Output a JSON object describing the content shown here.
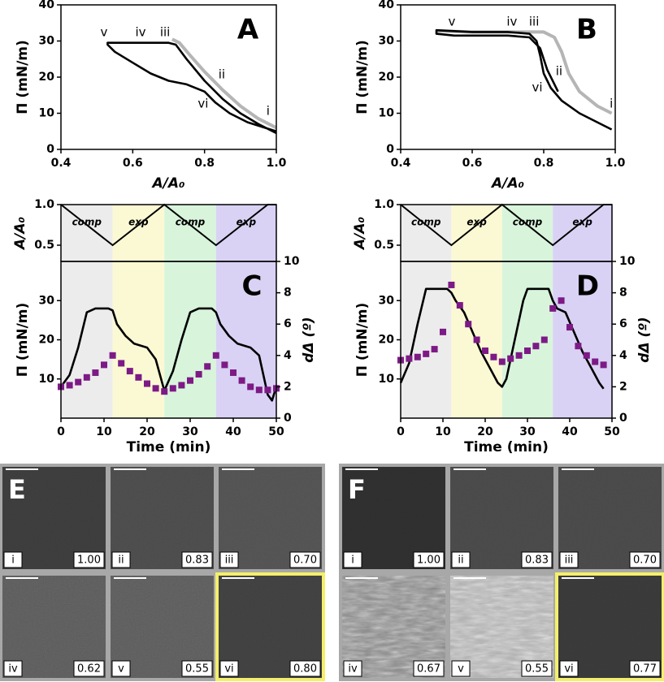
{
  "chart_data": [
    {
      "type": "isotherm",
      "panel_label": "A",
      "xlabel": "A/A₀",
      "ylabel": "Π  (mN/m)",
      "xlim": [
        0.4,
        1.0
      ],
      "xticks": [
        0.4,
        0.6,
        0.8,
        {
          "value": 1,
          "label": "1.0"
        }
      ],
      "ylim": [
        0,
        40
      ],
      "yticks": [
        0,
        10,
        20,
        30,
        40
      ],
      "annotations": [
        "i",
        "ii",
        "iii",
        "iv",
        "v",
        "vi"
      ],
      "series": [
        {
          "color": "#b5b5b5",
          "x": [
            1.0,
            0.95,
            0.9,
            0.85,
            0.8,
            0.76,
            0.73,
            0.71
          ],
          "values": [
            6,
            8.5,
            12,
            16.5,
            21.5,
            26,
            29.5,
            30.5
          ]
        },
        {
          "color": "#000000",
          "x": [
            1.0,
            0.95,
            0.9,
            0.85,
            0.8,
            0.75,
            0.72,
            0.7,
            0.53,
            0.53,
            0.55,
            0.6,
            0.65,
            0.7,
            0.75,
            0.8,
            0.83,
            0.87,
            0.92,
            1.0
          ],
          "values": [
            4.5,
            7,
            10,
            14,
            19,
            25,
            29,
            29.5,
            29.5,
            29,
            27,
            24,
            21,
            19,
            18,
            16,
            13,
            10,
            7.5,
            5
          ]
        }
      ]
    },
    {
      "type": "isotherm",
      "panel_label": "B",
      "xlabel": "A/A₀",
      "ylabel": "Π  (mN/m)",
      "xlim": [
        0.4,
        1.0
      ],
      "xticks": [
        0.4,
        0.6,
        0.8,
        {
          "value": 1,
          "label": "1.0"
        }
      ],
      "ylim": [
        0,
        40
      ],
      "yticks": [
        0,
        10,
        20,
        30,
        40
      ],
      "annotations": [
        "i",
        "ii",
        "iii",
        "iv",
        "v",
        "vi"
      ],
      "series": [
        {
          "color": "#b5b5b5",
          "x": [
            0.99,
            0.95,
            0.9,
            0.87,
            0.85,
            0.83,
            0.8,
            0.7,
            0.6,
            0.5
          ],
          "values": [
            10,
            12,
            16,
            21,
            27,
            31,
            32.5,
            32.5,
            32.5,
            32.8
          ]
        },
        {
          "color": "#000000",
          "x": [
            0.99,
            0.95,
            0.9,
            0.85,
            0.82,
            0.8,
            0.79,
            0.78,
            0.76,
            0.7,
            0.6,
            0.5,
            0.5,
            0.55,
            0.6,
            0.7,
            0.76,
            0.79,
            0.81,
            0.84
          ],
          "values": [
            5.5,
            7.5,
            10,
            13.5,
            17,
            21,
            26,
            30,
            32,
            32.5,
            32.5,
            33,
            32,
            31.5,
            31.5,
            31.5,
            31,
            28,
            22,
            16
          ]
        }
      ]
    },
    {
      "type": "time-series",
      "panel_label": "C",
      "top": {
        "ylabel": "A/A₀",
        "ylim": [
          0.3,
          1.0
        ],
        "yticks": [
          0.5,
          {
            "value": 1,
            "label": "1.0"
          }
        ],
        "color": "#000000",
        "x": [
          0,
          12,
          24,
          36,
          48,
          50
        ],
        "values": [
          1,
          0.5,
          1,
          0.5,
          1,
          1
        ]
      },
      "phases": [
        {
          "label": "comp",
          "start": 0,
          "end": 12,
          "color": "#ececec"
        },
        {
          "label": "exp",
          "start": 12,
          "end": 24,
          "color": "#fbf9d4"
        },
        {
          "label": "comp",
          "start": 24,
          "end": 36,
          "color": "#d8f5dc"
        },
        {
          "label": "exp",
          "start": 36,
          "end": 50,
          "color": "#d9d2f4"
        }
      ],
      "xlabel": "Time (min)",
      "xlim": [
        0,
        50
      ],
      "xticks": [
        0,
        10,
        20,
        30,
        40,
        50
      ],
      "ylabel": "Π  (mN/m)",
      "ylim": [
        0,
        40
      ],
      "yticks": [
        10,
        20,
        30
      ],
      "y2label": "dΔ (º)",
      "y2lim": [
        0,
        10
      ],
      "y2ticks": [
        0,
        2,
        4,
        6,
        8,
        10
      ],
      "series": [
        {
          "type": "line",
          "color": "#000000",
          "x": [
            0,
            2,
            4,
            6,
            8,
            11,
            12,
            13,
            15,
            17,
            20,
            22,
            24,
            26,
            28,
            30,
            32,
            35,
            36,
            37,
            39,
            41,
            44,
            46,
            48,
            49,
            50
          ],
          "values": [
            8,
            11,
            18,
            27,
            28,
            28,
            27.5,
            24,
            21,
            19,
            18,
            15,
            7,
            12,
            20,
            27,
            28,
            28,
            27,
            24,
            21,
            19,
            18,
            16,
            6,
            4.5,
            8
          ]
        },
        {
          "type": "scatter",
          "axis": "y2",
          "color": "#7d1a86",
          "x": [
            0,
            2,
            4,
            6,
            8,
            10,
            12,
            14,
            16,
            18,
            20,
            22,
            24,
            26,
            28,
            30,
            32,
            34,
            36,
            38,
            40,
            42,
            44,
            46,
            48,
            50
          ],
          "values": [
            2.0,
            2.1,
            2.3,
            2.6,
            2.9,
            3.4,
            4.0,
            3.5,
            3.0,
            2.6,
            2.2,
            1.9,
            1.7,
            1.9,
            2.1,
            2.4,
            2.8,
            3.3,
            4.0,
            3.4,
            2.9,
            2.4,
            2.0,
            1.8,
            1.8,
            1.9
          ]
        }
      ]
    },
    {
      "type": "time-series",
      "panel_label": "D",
      "top": {
        "ylabel": "A/A₀",
        "ylim": [
          0.3,
          1.0
        ],
        "yticks": [
          0.5,
          {
            "value": 1,
            "label": "1.0"
          }
        ],
        "color": "#000000",
        "x": [
          0,
          12,
          24,
          36,
          48,
          50
        ],
        "values": [
          1,
          0.5,
          1,
          0.5,
          1,
          1
        ]
      },
      "phases": [
        {
          "label": "comp",
          "start": 0,
          "end": 12,
          "color": "#ececec"
        },
        {
          "label": "exp",
          "start": 12,
          "end": 24,
          "color": "#fbf9d4"
        },
        {
          "label": "comp",
          "start": 24,
          "end": 36,
          "color": "#d8f5dc"
        },
        {
          "label": "exp",
          "start": 36,
          "end": 50,
          "color": "#d9d2f4"
        }
      ],
      "xlabel": "Time (min)",
      "xlim": [
        0,
        50
      ],
      "xticks": [
        0,
        10,
        20,
        30,
        40,
        50
      ],
      "ylabel": "Π  (mN/m)",
      "ylim": [
        0,
        40
      ],
      "yticks": [
        10,
        20,
        30
      ],
      "y2label": "dΔ (º)",
      "y2lim": [
        0,
        10
      ],
      "y2ticks": [
        0,
        2,
        4,
        6,
        8,
        10
      ],
      "series": [
        {
          "type": "line",
          "color": "#000000",
          "x": [
            0,
            2,
            4,
            6,
            8,
            11,
            12,
            13,
            15,
            17,
            19,
            21,
            23,
            24,
            25,
            27,
            29,
            30,
            33,
            35,
            36,
            37,
            39,
            41,
            43,
            45,
            47,
            48
          ],
          "values": [
            9,
            14,
            24,
            33,
            33,
            33,
            32,
            30,
            27,
            22,
            17,
            13,
            9,
            8,
            10,
            20,
            30,
            33,
            33,
            33,
            30,
            28,
            27,
            22,
            17,
            13,
            9,
            7.5
          ]
        },
        {
          "type": "scatter",
          "axis": "y2",
          "color": "#7d1a86",
          "x": [
            0,
            2,
            4,
            6,
            8,
            10,
            12,
            14,
            16,
            18,
            20,
            22,
            24,
            26,
            28,
            30,
            32,
            34,
            36,
            38,
            40,
            42,
            44,
            46,
            48
          ],
          "values": [
            3.7,
            3.8,
            3.9,
            4.1,
            4.4,
            5.5,
            8.5,
            7.2,
            6.0,
            5.0,
            4.3,
            3.9,
            3.6,
            3.8,
            4.0,
            4.3,
            4.6,
            5.0,
            7.0,
            7.5,
            5.8,
            4.6,
            4.0,
            3.6,
            3.4
          ]
        }
      ]
    }
  ],
  "micrographs": [
    {
      "panel_label": "E",
      "numerals": [
        "i",
        "ii",
        "iii",
        "iv",
        "v",
        "vi"
      ],
      "ratios": [
        "1.00",
        "0.83",
        "0.70",
        "0.62",
        "0.55",
        "0.80"
      ],
      "highlight": 5
    },
    {
      "panel_label": "F",
      "numerals": [
        "i",
        "ii",
        "iii",
        "iv",
        "v",
        "vi"
      ],
      "ratios": [
        "1.00",
        "0.83",
        "0.70",
        "0.67",
        "0.55",
        "0.77"
      ],
      "highlight": 5
    }
  ]
}
